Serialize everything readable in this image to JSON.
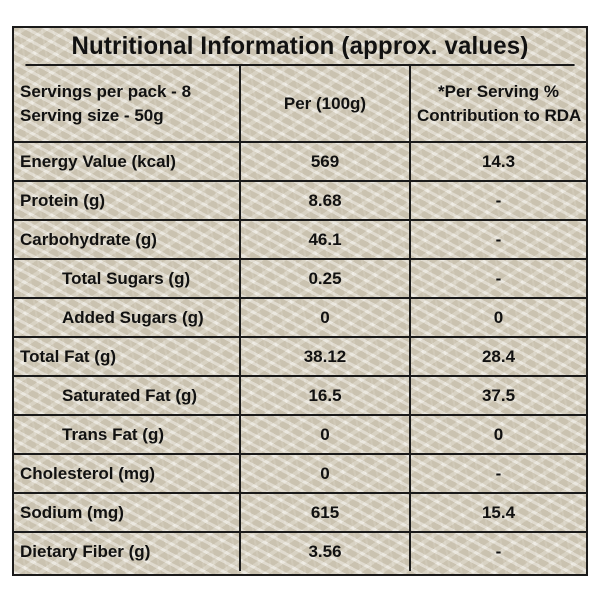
{
  "title": "Nutritional Information (approx. values)",
  "header": {
    "col1_line1": "Servings per pack - 8",
    "col1_line2": "Serving size - 50g",
    "col2": "Per (100g)",
    "col3_line1": "*Per Serving %",
    "col3_line2": "Contribution to RDA"
  },
  "rows": [
    {
      "nutrient": "Energy Value (kcal)",
      "per100g": "569",
      "rda": "14.3"
    },
    {
      "nutrient": "Protein (g)",
      "per100g": "8.68",
      "rda": "-"
    },
    {
      "nutrient": "Carbohydrate (g)",
      "per100g": "46.1",
      "rda": "-"
    },
    {
      "nutrient": "Total Sugars (g)",
      "per100g": "0.25",
      "rda": "-"
    },
    {
      "nutrient": "Added Sugars (g)",
      "per100g": "0",
      "rda": "0"
    },
    {
      "nutrient": "Total Fat (g)",
      "per100g": "38.12",
      "rda": "28.4"
    },
    {
      "nutrient": "Saturated Fat (g)",
      "per100g": "16.5",
      "rda": "37.5"
    },
    {
      "nutrient": "Trans Fat (g)",
      "per100g": "0",
      "rda": "0"
    },
    {
      "nutrient": "Cholesterol (mg)",
      "per100g": "0",
      "rda": "-"
    },
    {
      "nutrient": "Sodium (mg)",
      "per100g": "615",
      "rda": "15.4"
    },
    {
      "nutrient": "Dietary Fiber (g)",
      "per100g": "3.56",
      "rda": "-"
    }
  ]
}
